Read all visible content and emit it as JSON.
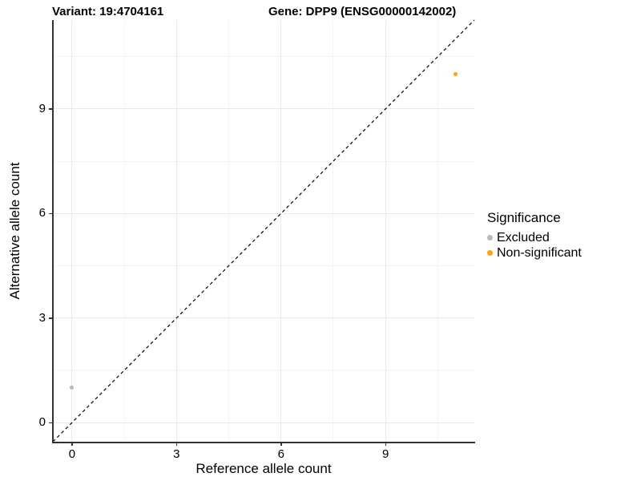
{
  "title": {
    "variant_label": "Variant: 19:4704161",
    "gene_label": "Gene: DPP9 (ENSG00000142002)"
  },
  "axes": {
    "xlabel": "Reference allele count",
    "ylabel": "Alternative allele count"
  },
  "legend": {
    "title": "Significance",
    "items": [
      {
        "label": "Excluded",
        "color": "#b8b8b8"
      },
      {
        "label": "Non-significant",
        "color": "#ffa500"
      }
    ]
  },
  "chart_data": {
    "type": "scatter",
    "title": "Variant: 19:4704161   Gene: DPP9 (ENSG00000142002)",
    "xlabel": "Reference allele count",
    "ylabel": "Alternative allele count",
    "xlim": [
      -0.55,
      11.55
    ],
    "ylim": [
      -0.55,
      11.55
    ],
    "xticks": [
      0,
      3,
      6,
      9
    ],
    "yticks": [
      0,
      3,
      6,
      9
    ],
    "minor_ticks": [
      1.5,
      4.5,
      7.5,
      10.5
    ],
    "grid": true,
    "identity_line": {
      "style": "dashed",
      "color": "#000000",
      "equation": "y = x"
    },
    "legend_title": "Significance",
    "legend_position": "right",
    "series": [
      {
        "name": "Excluded",
        "color": "#b8b8b8",
        "points": [
          {
            "x": 0,
            "y": 1
          }
        ]
      },
      {
        "name": "Non-significant",
        "color": "#ffa500",
        "points": [
          {
            "x": 11,
            "y": 10
          }
        ]
      }
    ],
    "colors": {
      "axis_line": "#333333",
      "grid_major": "#e9e9e9",
      "grid_minor": "#f4f4f4"
    }
  }
}
